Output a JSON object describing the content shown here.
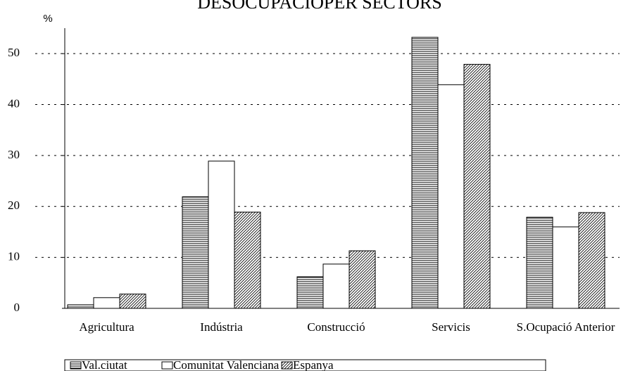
{
  "chart_data": {
    "type": "bar",
    "title": "DESOCUPACIOPER SECTORS",
    "y_label": "%",
    "categories": [
      "Agricultura",
      "Indústria",
      "Construcció",
      "Servicis",
      "S.Ocupació Anterior"
    ],
    "series": [
      {
        "name": "Val.ciutat",
        "color": "#000000",
        "pattern": "horizontal",
        "values": [
          0.7,
          21.9,
          6.2,
          53.2,
          17.9
        ]
      },
      {
        "name": "Comunitat Valenciana",
        "color": "#000000",
        "pattern": "none",
        "values": [
          2.1,
          28.9,
          8.7,
          43.9,
          16.0
        ]
      },
      {
        "name": "Espanya",
        "color": "#000000",
        "pattern": "diagonal",
        "values": [
          2.8,
          18.9,
          11.3,
          47.9,
          18.8
        ]
      }
    ],
    "ylim": [
      0,
      55
    ],
    "yticks": [
      0,
      10,
      20,
      30,
      40,
      50
    ],
    "grid": true
  }
}
